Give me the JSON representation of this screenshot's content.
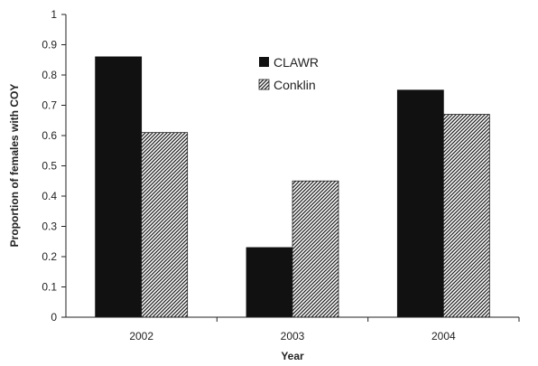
{
  "chart_data": {
    "type": "bar",
    "categories": [
      "2002",
      "2003",
      "2004"
    ],
    "series": [
      {
        "name": "CLAWR",
        "values": [
          0.86,
          0.23,
          0.75
        ],
        "style": "solid",
        "color": "#111111"
      },
      {
        "name": "Conklin",
        "values": [
          0.61,
          0.45,
          0.67
        ],
        "style": "hatched",
        "color": "#333333"
      }
    ],
    "title": "",
    "xlabel": "Year",
    "ylabel": "Proportion of females with COY",
    "ylim": [
      0,
      1
    ],
    "yticks": [
      "0",
      "0.1",
      "0.2",
      "0.3",
      "0.4",
      "0.5",
      "0.6",
      "0.7",
      "0.8",
      "0.9",
      "1"
    ],
    "grid": false,
    "legend_position": "top-center"
  }
}
